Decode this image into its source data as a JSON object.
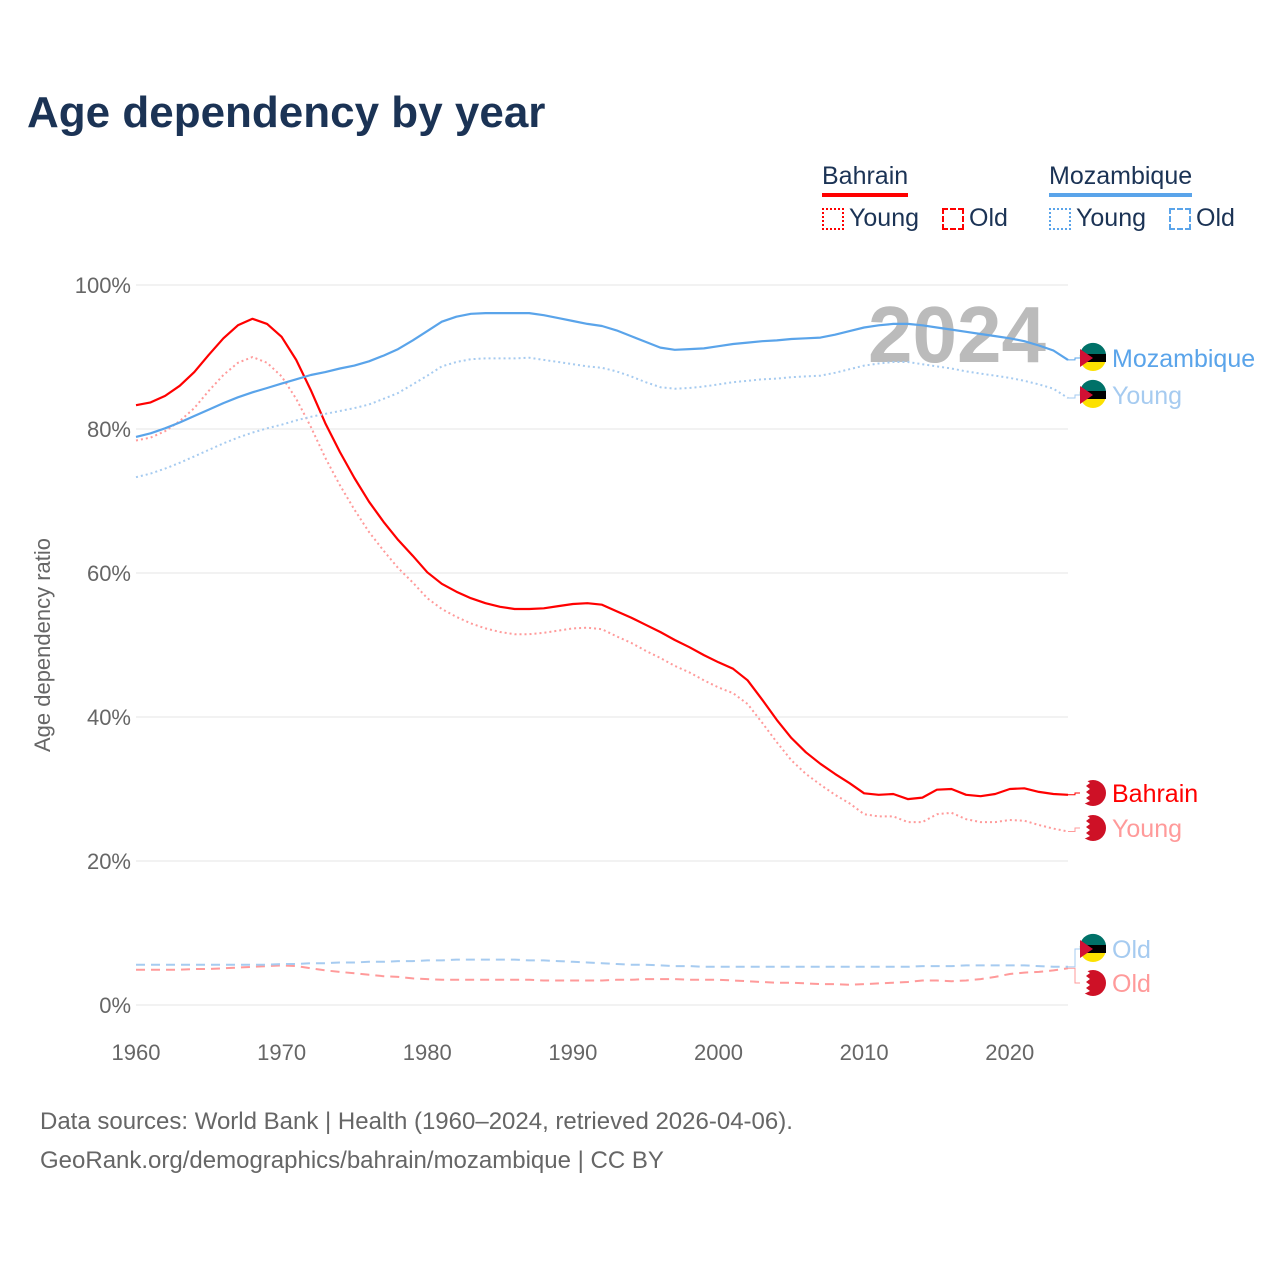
{
  "title": "Age dependency by year",
  "legend": {
    "groups": [
      {
        "name": "Bahrain",
        "color": "#ff0000",
        "young_label": "Young",
        "old_label": "Old"
      },
      {
        "name": "Mozambique",
        "color": "#5aa4ea",
        "young_label": "Young",
        "old_label": "Old"
      }
    ]
  },
  "footer": {
    "line1": "Data sources: World Bank | Health (1960–2024, retrieved 2026-04-06).",
    "line2": "GeoRank.org/demographics/bahrain/mozambique | CC BY"
  },
  "chart_data": {
    "type": "line",
    "title": "Age dependency by year",
    "xlabel": "",
    "ylabel": "Age dependency ratio",
    "xlim": [
      1960,
      2024
    ],
    "ylim": [
      0,
      100
    ],
    "x_ticks": [
      "1960",
      "1970",
      "1980",
      "1990",
      "2000",
      "2010",
      "2020"
    ],
    "y_ticks": [
      "0%",
      "20%",
      "40%",
      "60%",
      "80%",
      "100%"
    ],
    "year_watermark": "2024",
    "start_year": 1960,
    "series": [
      {
        "name": "Bahrain",
        "label": "Bahrain",
        "style": "solid",
        "color": "#ff0000",
        "flag": "bahrain",
        "values": [
          83.3,
          83.7,
          84.6,
          86.0,
          87.9,
          90.3,
          92.6,
          94.4,
          95.3,
          94.6,
          92.8,
          89.6,
          85.4,
          80.8,
          76.8,
          73.2,
          69.9,
          67.1,
          64.6,
          62.4,
          60.1,
          58.5,
          57.4,
          56.5,
          55.8,
          55.3,
          55.0,
          55.0,
          55.1,
          55.4,
          55.7,
          55.8,
          55.6,
          54.7,
          53.8,
          52.8,
          51.8,
          50.7,
          49.7,
          48.6,
          47.6,
          46.7,
          45.1,
          42.4,
          39.6,
          37.1,
          35.1,
          33.5,
          32.1,
          30.8,
          29.4,
          29.2,
          29.3,
          28.6,
          28.8,
          29.9,
          30.0,
          29.2,
          29.0,
          29.3,
          30.0,
          30.1,
          29.6,
          29.3,
          29.2
        ]
      },
      {
        "name": "Bahrain Young",
        "label": "Young",
        "style": "dotted",
        "color": "#ff9a9a",
        "flag": "bahrain",
        "values": [
          78.4,
          78.8,
          79.7,
          81.1,
          82.9,
          85.3,
          87.5,
          89.2,
          90.0,
          89.2,
          87.3,
          84.2,
          80.3,
          76.0,
          72.2,
          68.8,
          65.7,
          63.1,
          60.7,
          58.7,
          56.5,
          55.0,
          53.9,
          53.0,
          52.3,
          51.8,
          51.5,
          51.5,
          51.7,
          52.0,
          52.3,
          52.4,
          52.2,
          51.2,
          50.3,
          49.2,
          48.2,
          47.1,
          46.2,
          45.1,
          44.1,
          43.3,
          41.8,
          39.2,
          36.5,
          34.0,
          32.1,
          30.6,
          29.2,
          28.0,
          26.5,
          26.2,
          26.2,
          25.4,
          25.4,
          26.5,
          26.7,
          25.8,
          25.4,
          25.4,
          25.7,
          25.6,
          25.0,
          24.5,
          24.1
        ]
      },
      {
        "name": "Bahrain Old",
        "label": "Old",
        "style": "dashed",
        "color": "#ff9a9a",
        "flag": "bahrain",
        "values": [
          4.9,
          4.9,
          4.9,
          4.9,
          5.0,
          5.0,
          5.1,
          5.2,
          5.3,
          5.4,
          5.5,
          5.4,
          5.1,
          4.8,
          4.6,
          4.4,
          4.2,
          4.0,
          3.9,
          3.7,
          3.6,
          3.5,
          3.5,
          3.5,
          3.5,
          3.5,
          3.5,
          3.5,
          3.4,
          3.4,
          3.4,
          3.4,
          3.4,
          3.5,
          3.5,
          3.6,
          3.6,
          3.6,
          3.5,
          3.5,
          3.5,
          3.4,
          3.3,
          3.2,
          3.1,
          3.1,
          3.0,
          2.9,
          2.9,
          2.8,
          2.9,
          3.0,
          3.1,
          3.2,
          3.4,
          3.4,
          3.3,
          3.4,
          3.6,
          3.9,
          4.3,
          4.5,
          4.6,
          4.8,
          5.1
        ]
      },
      {
        "name": "Mozambique",
        "label": "Mozambique",
        "style": "solid",
        "color": "#5aa4ea",
        "flag": "mozambique",
        "values": [
          78.9,
          79.4,
          80.1,
          80.9,
          81.8,
          82.7,
          83.6,
          84.4,
          85.1,
          85.7,
          86.3,
          86.9,
          87.5,
          87.9,
          88.4,
          88.8,
          89.4,
          90.2,
          91.1,
          92.3,
          93.6,
          94.9,
          95.6,
          96.0,
          96.1,
          96.1,
          96.1,
          96.1,
          95.8,
          95.4,
          95.0,
          94.6,
          94.3,
          93.7,
          92.9,
          92.1,
          91.3,
          91.0,
          91.1,
          91.2,
          91.5,
          91.8,
          92.0,
          92.2,
          92.3,
          92.5,
          92.6,
          92.7,
          93.1,
          93.6,
          94.1,
          94.4,
          94.6,
          94.6,
          94.4,
          94.1,
          93.8,
          93.5,
          93.2,
          92.9,
          92.6,
          92.2,
          91.6,
          90.9,
          89.6
        ]
      },
      {
        "name": "Mozambique Young",
        "label": "Young",
        "style": "dotted",
        "color": "#a6cbf0",
        "flag": "mozambique",
        "values": [
          73.3,
          73.8,
          74.5,
          75.3,
          76.2,
          77.1,
          78.0,
          78.8,
          79.5,
          80.1,
          80.6,
          81.2,
          81.7,
          82.1,
          82.5,
          82.9,
          83.4,
          84.2,
          85.0,
          86.2,
          87.4,
          88.7,
          89.3,
          89.7,
          89.8,
          89.8,
          89.8,
          89.9,
          89.6,
          89.3,
          89.0,
          88.7,
          88.5,
          88.0,
          87.3,
          86.5,
          85.8,
          85.6,
          85.7,
          85.9,
          86.2,
          86.5,
          86.7,
          86.9,
          87.0,
          87.2,
          87.3,
          87.4,
          87.8,
          88.3,
          88.8,
          89.1,
          89.3,
          89.3,
          89.0,
          88.7,
          88.4,
          88.0,
          87.7,
          87.4,
          87.1,
          86.7,
          86.2,
          85.6,
          84.3
        ]
      },
      {
        "name": "Mozambique Old",
        "label": "Old",
        "style": "dashed",
        "color": "#a6cbf0",
        "flag": "mozambique",
        "values": [
          5.6,
          5.6,
          5.6,
          5.6,
          5.6,
          5.6,
          5.6,
          5.6,
          5.6,
          5.6,
          5.7,
          5.7,
          5.8,
          5.8,
          5.9,
          5.9,
          6.0,
          6.0,
          6.1,
          6.1,
          6.2,
          6.2,
          6.3,
          6.3,
          6.3,
          6.3,
          6.3,
          6.2,
          6.2,
          6.1,
          6.0,
          5.9,
          5.8,
          5.7,
          5.6,
          5.6,
          5.5,
          5.4,
          5.4,
          5.3,
          5.3,
          5.3,
          5.3,
          5.3,
          5.3,
          5.3,
          5.3,
          5.3,
          5.3,
          5.3,
          5.3,
          5.3,
          5.3,
          5.3,
          5.4,
          5.4,
          5.4,
          5.5,
          5.5,
          5.5,
          5.5,
          5.5,
          5.4,
          5.3,
          5.3
        ]
      }
    ]
  }
}
